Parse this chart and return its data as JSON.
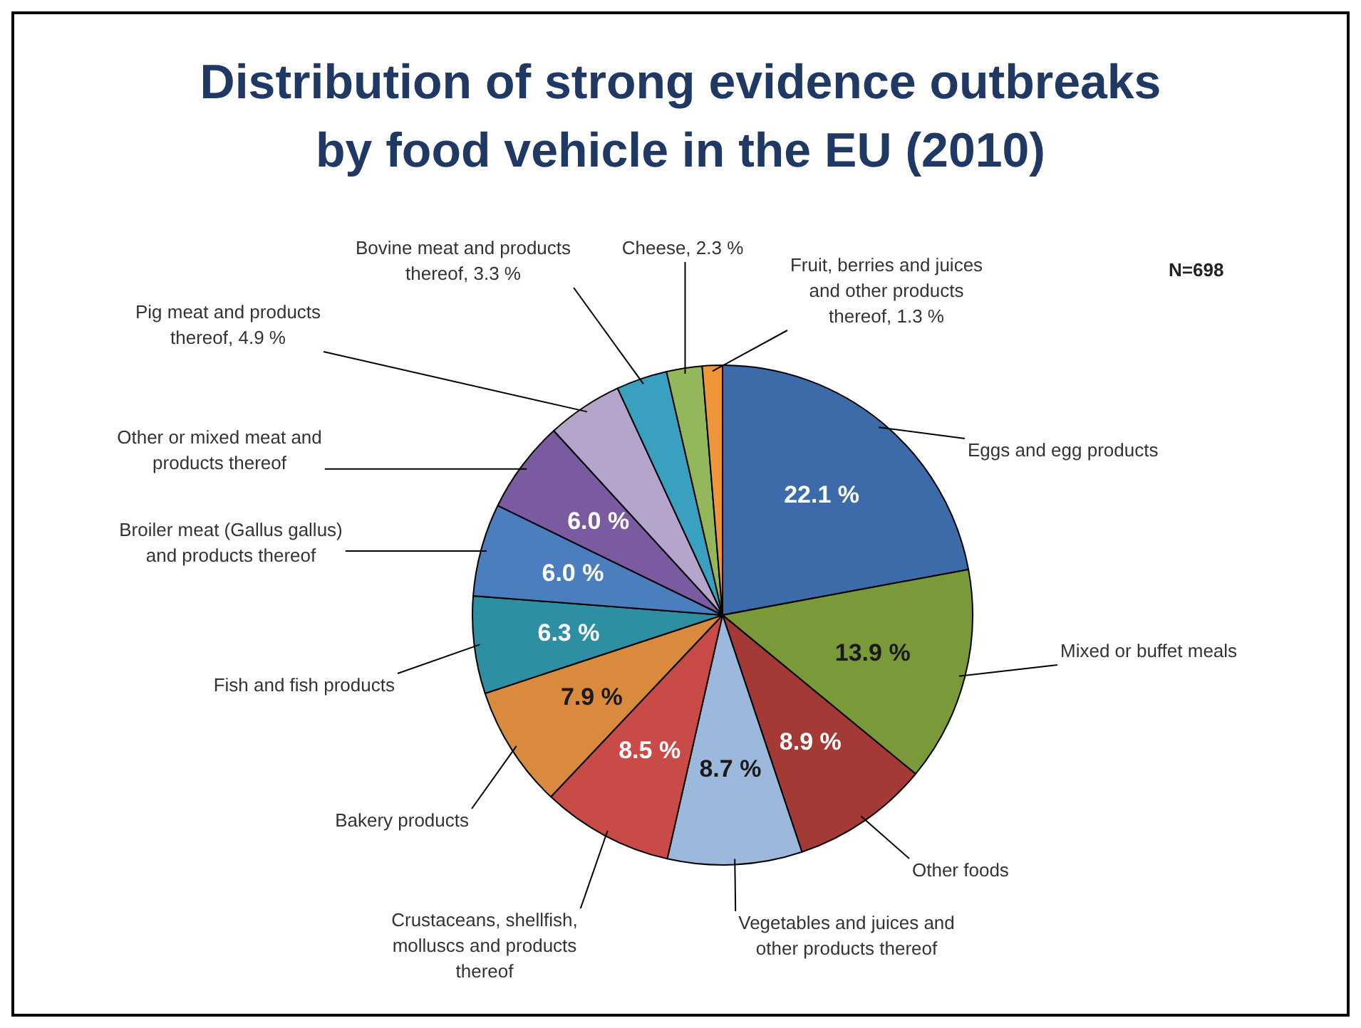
{
  "chart_data": {
    "type": "pie",
    "title": "Distribution of strong evidence outbreaks by food vehicle in the EU (2010)",
    "categories": [
      "Eggs and egg products",
      "Mixed or buffet meals",
      "Other foods",
      "Vegetables and juices and other products thereof",
      "Crustaceans, shellfish, molluscs and products thereof",
      "Bakery products",
      "Fish and fish products",
      "Broiler meat (Gallus gallus) and products thereof",
      "Other or mixed meat and products thereof",
      "Pig meat and products thereof",
      "Bovine meat and products thereof",
      "Cheese",
      "Fruit, berries and juices and other products thereof"
    ],
    "values": [
      22.1,
      13.9,
      8.9,
      8.7,
      8.5,
      7.9,
      6.3,
      6.0,
      6.0,
      4.9,
      3.3,
      2.3,
      1.3
    ],
    "value_labels": [
      "22.1 %",
      "13.9 %",
      "8.9 %",
      "8.7 %",
      "8.5 %",
      "7.9 %",
      "6.3 %",
      "6.0 %",
      "6.0 %",
      "4.9 %",
      "3.3 %",
      "2.3 %",
      "1.3 %"
    ],
    "colors": [
      "#3d6aa8",
      "#7a9a3a",
      "#a33a36",
      "#9cb8dc",
      "#c84b47",
      "#d98a3c",
      "#2e8fa3",
      "#4a7ebf",
      "#7a5aa0",
      "#b5a4cc",
      "#3aa0c0",
      "#93b75a",
      "#f0963a"
    ],
    "legend": false,
    "annotations": [
      "N=698"
    ]
  }
}
